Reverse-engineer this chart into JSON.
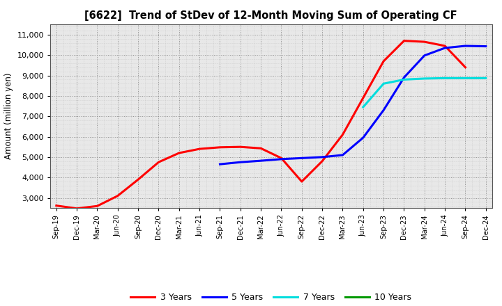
{
  "title": "[6622]  Trend of StDev of 12-Month Moving Sum of Operating CF",
  "ylabel": "Amount (million yen)",
  "background_color": "#ffffff",
  "plot_bg_color": "#e8e8e8",
  "ylim": [
    2500,
    11500
  ],
  "yticks": [
    3000,
    4000,
    5000,
    6000,
    7000,
    8000,
    9000,
    10000,
    11000
  ],
  "x_labels": [
    "Sep-19",
    "Dec-19",
    "Mar-20",
    "Jun-20",
    "Sep-20",
    "Dec-20",
    "Mar-21",
    "Jun-21",
    "Sep-21",
    "Dec-21",
    "Mar-22",
    "Jun-22",
    "Sep-22",
    "Dec-22",
    "Mar-23",
    "Jun-23",
    "Sep-23",
    "Dec-23",
    "Mar-24",
    "Jun-24",
    "Sep-24",
    "Dec-24"
  ],
  "series": [
    {
      "label": "3 Years",
      "color": "#ff0000",
      "x": [
        0,
        1,
        2,
        3,
        4,
        5,
        6,
        7,
        8,
        9,
        10,
        11,
        12,
        13,
        14,
        15,
        16,
        17,
        18,
        19,
        20
      ],
      "y": [
        2620,
        2480,
        2600,
        3100,
        3900,
        4750,
        5200,
        5400,
        5480,
        5500,
        5430,
        4950,
        3800,
        4800,
        6100,
        7900,
        9700,
        10700,
        10650,
        10450,
        9400
      ]
    },
    {
      "label": "5 Years",
      "color": "#0000ff",
      "x": [
        8,
        9,
        10,
        11,
        12,
        13,
        14,
        15,
        16,
        17,
        18,
        19,
        20,
        21
      ],
      "y": [
        4650,
        4750,
        4820,
        4900,
        4950,
        5000,
        5100,
        5950,
        7300,
        8900,
        9980,
        10350,
        10450,
        10430
      ]
    },
    {
      "label": "7 Years",
      "color": "#00dddd",
      "x": [
        15,
        16,
        17,
        18,
        19,
        20,
        21
      ],
      "y": [
        7450,
        8600,
        8800,
        8850,
        8870,
        8870,
        8870
      ]
    },
    {
      "label": "10 Years",
      "color": "#009900",
      "x": [],
      "y": []
    }
  ]
}
